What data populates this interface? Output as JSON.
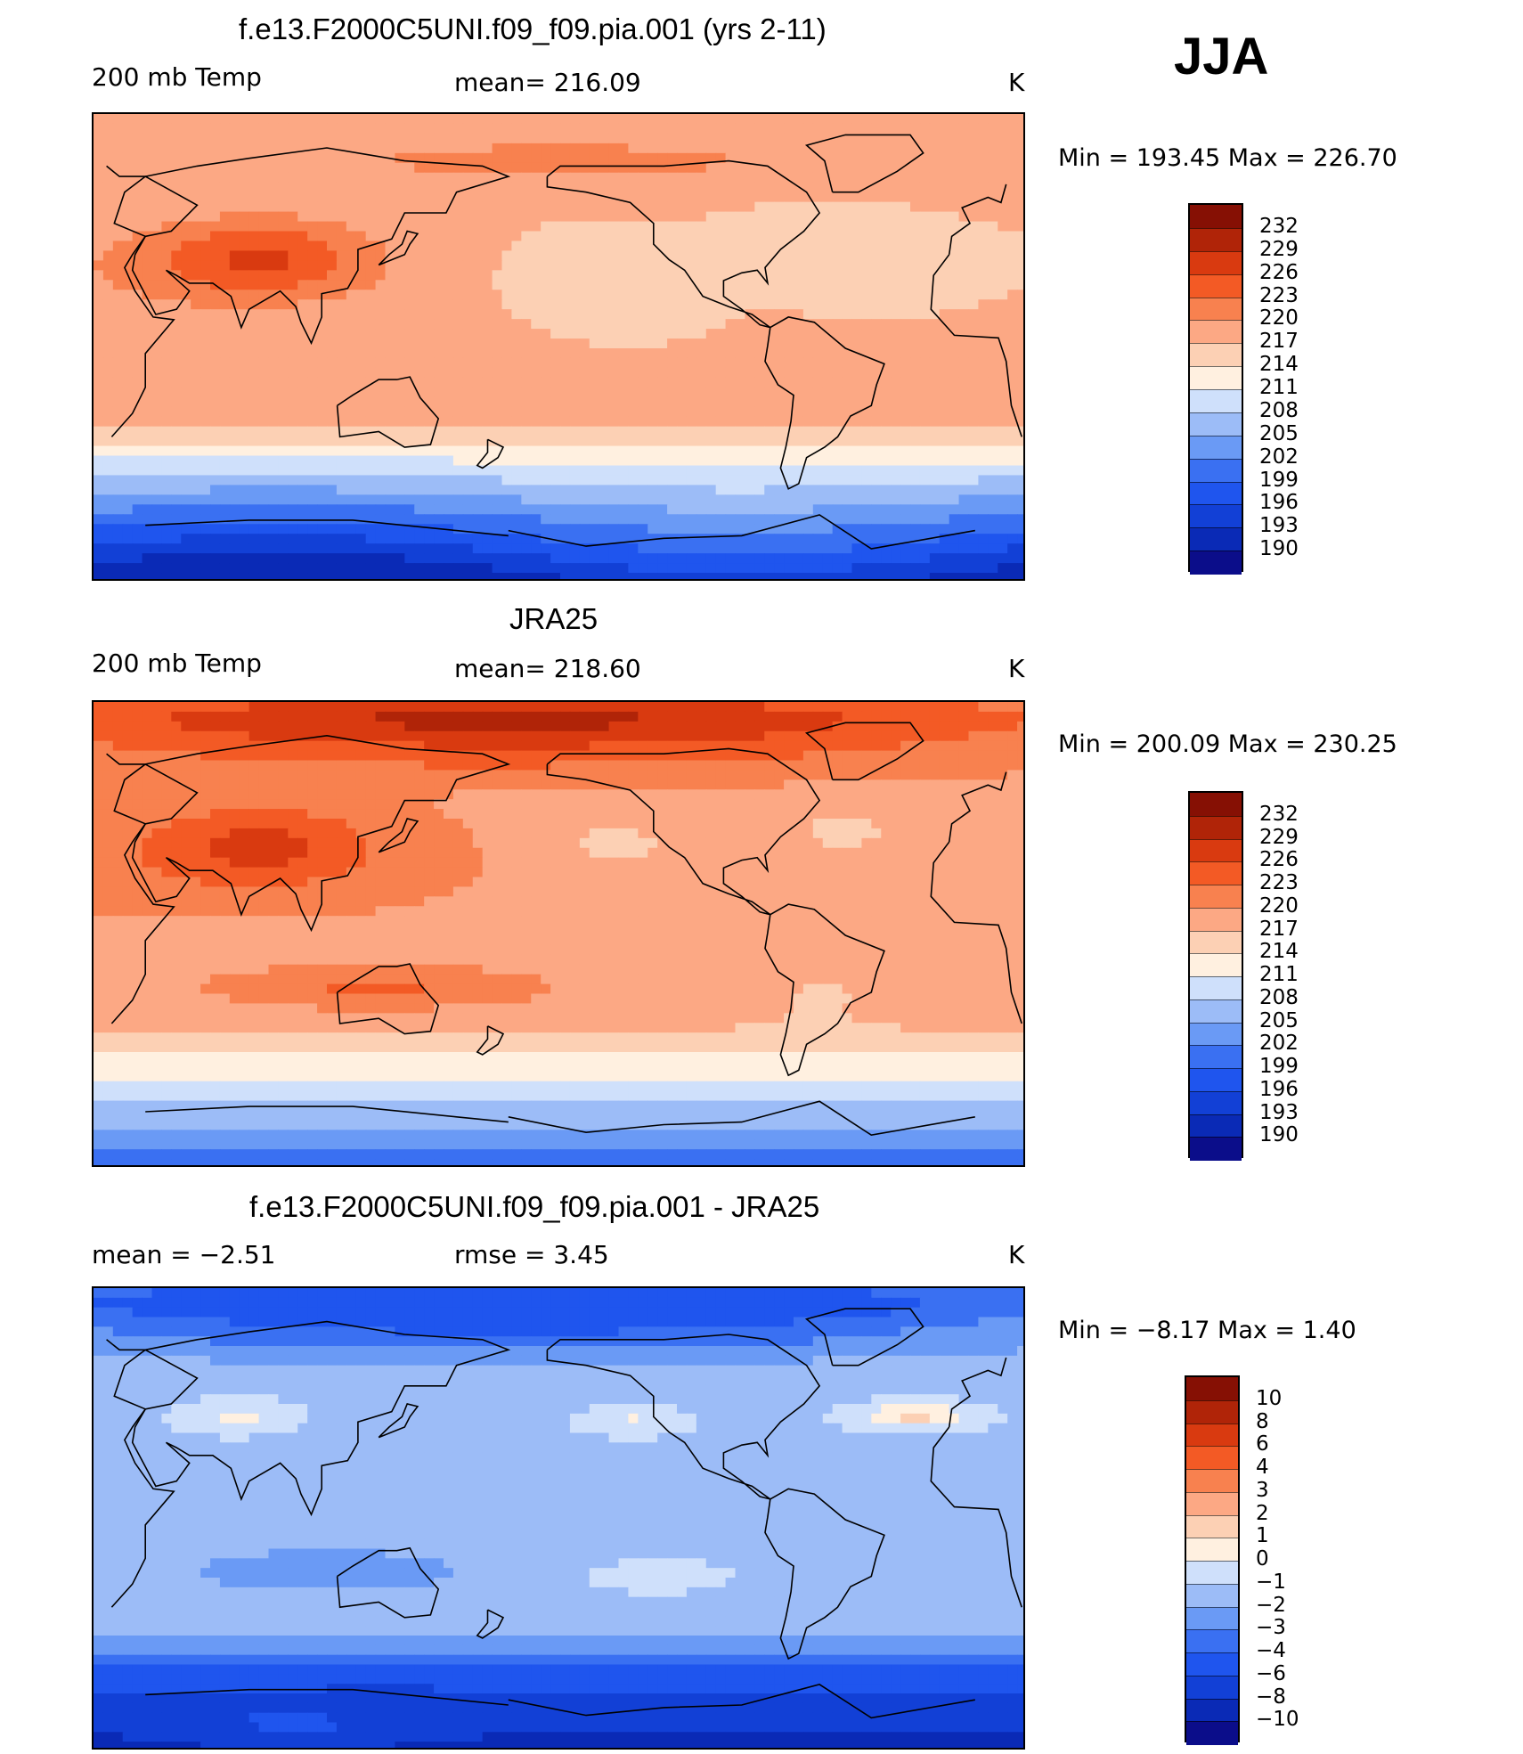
{
  "season": "JJA",
  "colors": {
    "abs_scale": [
      "#0b0d8a",
      "#0a2ab6",
      "#1240d6",
      "#1f55ee",
      "#3a70f2",
      "#6a9af5",
      "#9cbcf7",
      "#cfe0fb",
      "#fff0e0",
      "#fcd0b4",
      "#fca884",
      "#f8814f",
      "#f35a25",
      "#d93a10",
      "#b02408",
      "#861004"
    ],
    "diff_scale": [
      "#0b0d8a",
      "#0a2ab6",
      "#1240d6",
      "#1f55ee",
      "#3a70f2",
      "#6a9af5",
      "#9cbcf7",
      "#cfe0fb",
      "#fff0e0",
      "#fcd0b4",
      "#fca884",
      "#f8814f",
      "#f35a25",
      "#d93a10",
      "#b02408",
      "#861004"
    ]
  },
  "panels": [
    {
      "title": "f.e13.F2000C5UNI.f09_f09.pia.001 (yrs 2-11)",
      "left_label": "200 mb Temp",
      "center_label": "mean= 216.09",
      "units": "K",
      "minmax": "Min = 193.45 Max = 226.70",
      "colorbar_labels": [
        "232",
        "229",
        "226",
        "223",
        "220",
        "217",
        "214",
        "211",
        "208",
        "205",
        "202",
        "199",
        "196",
        "193",
        "190"
      ],
      "map": {
        "variant": "model",
        "min": 193.45,
        "max": 226.7
      }
    },
    {
      "title": "JRA25",
      "left_label": "200 mb Temp",
      "center_label": "mean= 218.60",
      "units": "K",
      "minmax": "Min = 200.09 Max = 230.25",
      "colorbar_labels": [
        "232",
        "229",
        "226",
        "223",
        "220",
        "217",
        "214",
        "211",
        "208",
        "205",
        "202",
        "199",
        "196",
        "193",
        "190"
      ],
      "map": {
        "variant": "obs",
        "min": 200.09,
        "max": 230.25
      }
    },
    {
      "title": "f.e13.F2000C5UNI.f09_f09.pia.001 - JRA25",
      "left_label": "mean =   −2.51",
      "center_label": "rmse =    3.45",
      "units": "K",
      "minmax": "Min =   −8.17 Max =    1.40",
      "colorbar_labels": [
        "10",
        "8",
        "6",
        "4",
        "3",
        "2",
        "1",
        "0",
        "−1",
        "−2",
        "−3",
        "−4",
        "−6",
        "−8",
        "−10"
      ],
      "map": {
        "variant": "diff",
        "min": -8.17,
        "max": 1.4
      }
    }
  ]
}
